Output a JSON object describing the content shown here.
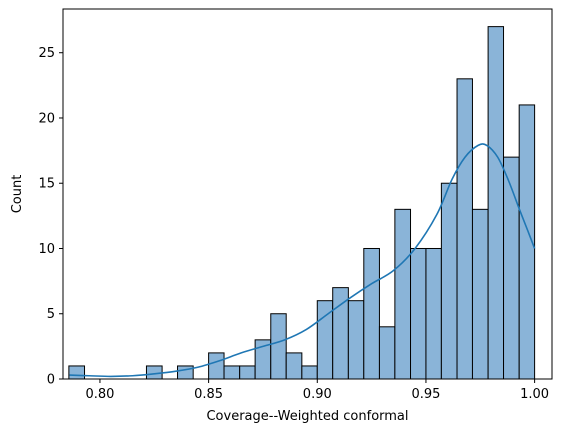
{
  "chart_data": {
    "type": "bar",
    "title": "",
    "xlabel": "Coverage--Weighted conformal",
    "ylabel": "Count",
    "xlim": [
      0.783,
      1.008
    ],
    "ylim": [
      0,
      28.35
    ],
    "grid": false,
    "legend": "none",
    "x_ticks": [
      0.8,
      0.85,
      0.9,
      0.95,
      1.0
    ],
    "x_tick_labels": [
      "0.80",
      "0.85",
      "0.90",
      "0.95",
      "1.00"
    ],
    "y_ticks": [
      0,
      5,
      10,
      15,
      20,
      25
    ],
    "y_tick_labels": [
      "0",
      "5",
      "10",
      "15",
      "20",
      "25"
    ],
    "bin_edges": [
      0.7857,
      0.7929,
      0.8,
      0.8071,
      0.8143,
      0.8214,
      0.8286,
      0.8357,
      0.8429,
      0.85,
      0.8571,
      0.8643,
      0.8714,
      0.8786,
      0.8857,
      0.8929,
      0.9,
      0.9071,
      0.9143,
      0.9214,
      0.9286,
      0.9357,
      0.9429,
      0.95,
      0.9571,
      0.9643,
      0.9714,
      0.9786,
      0.9857,
      0.9929,
      1.0
    ],
    "counts": [
      1,
      0,
      0,
      0,
      0,
      1,
      0,
      1,
      0,
      2,
      1,
      1,
      3,
      5,
      2,
      1,
      6,
      7,
      6,
      10,
      4,
      13,
      10,
      10,
      15,
      23,
      13,
      27,
      17,
      21
    ],
    "kde": {
      "x": [
        0.786,
        0.795,
        0.805,
        0.815,
        0.825,
        0.835,
        0.845,
        0.855,
        0.865,
        0.875,
        0.885,
        0.895,
        0.905,
        0.915,
        0.925,
        0.935,
        0.945,
        0.955,
        0.962,
        0.968,
        0.974,
        0.978,
        0.983,
        0.988,
        0.993,
        0.997,
        1.0
      ],
      "y": [
        0.3,
        0.25,
        0.2,
        0.25,
        0.4,
        0.6,
        0.9,
        1.4,
        2.0,
        2.5,
        3.0,
        3.8,
        5.0,
        6.2,
        7.3,
        8.3,
        10.0,
        12.6,
        15.3,
        17.0,
        17.9,
        17.9,
        17.0,
        15.2,
        13.0,
        11.3,
        10.0
      ]
    },
    "colors": {
      "bar_fill": "#8ab4d8",
      "bar_edge": "#000000",
      "kde_line": "#1f77b4"
    }
  }
}
